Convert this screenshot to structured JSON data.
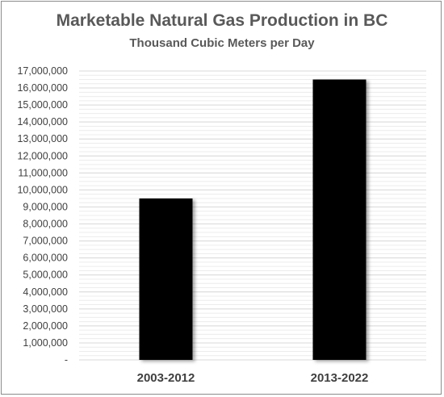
{
  "chart_data": {
    "type": "bar",
    "title": "Marketable Natural Gas Production in BC",
    "subtitle": "Thousand Cubic Meters per Day",
    "categories": [
      "2003-2012",
      "2013-2022"
    ],
    "values": [
      9500000,
      16500000
    ],
    "ylim": [
      0,
      17000000
    ],
    "yticks": [
      0,
      1000000,
      2000000,
      3000000,
      4000000,
      5000000,
      6000000,
      7000000,
      8000000,
      9000000,
      10000000,
      11000000,
      12000000,
      13000000,
      14000000,
      15000000,
      16000000,
      17000000
    ],
    "ytick_labels": [
      "-",
      "1,000,000",
      "2,000,000",
      "3,000,000",
      "4,000,000",
      "5,000,000",
      "6,000,000",
      "7,000,000",
      "8,000,000",
      "9,000,000",
      "10,000,000",
      "11,000,000",
      "12,000,000",
      "13,000,000",
      "14,000,000",
      "15,000,000",
      "16,000,000",
      "17,000,000"
    ],
    "grid": true,
    "bar_color": "#000000",
    "gridline_color": "#d9d9d9"
  }
}
